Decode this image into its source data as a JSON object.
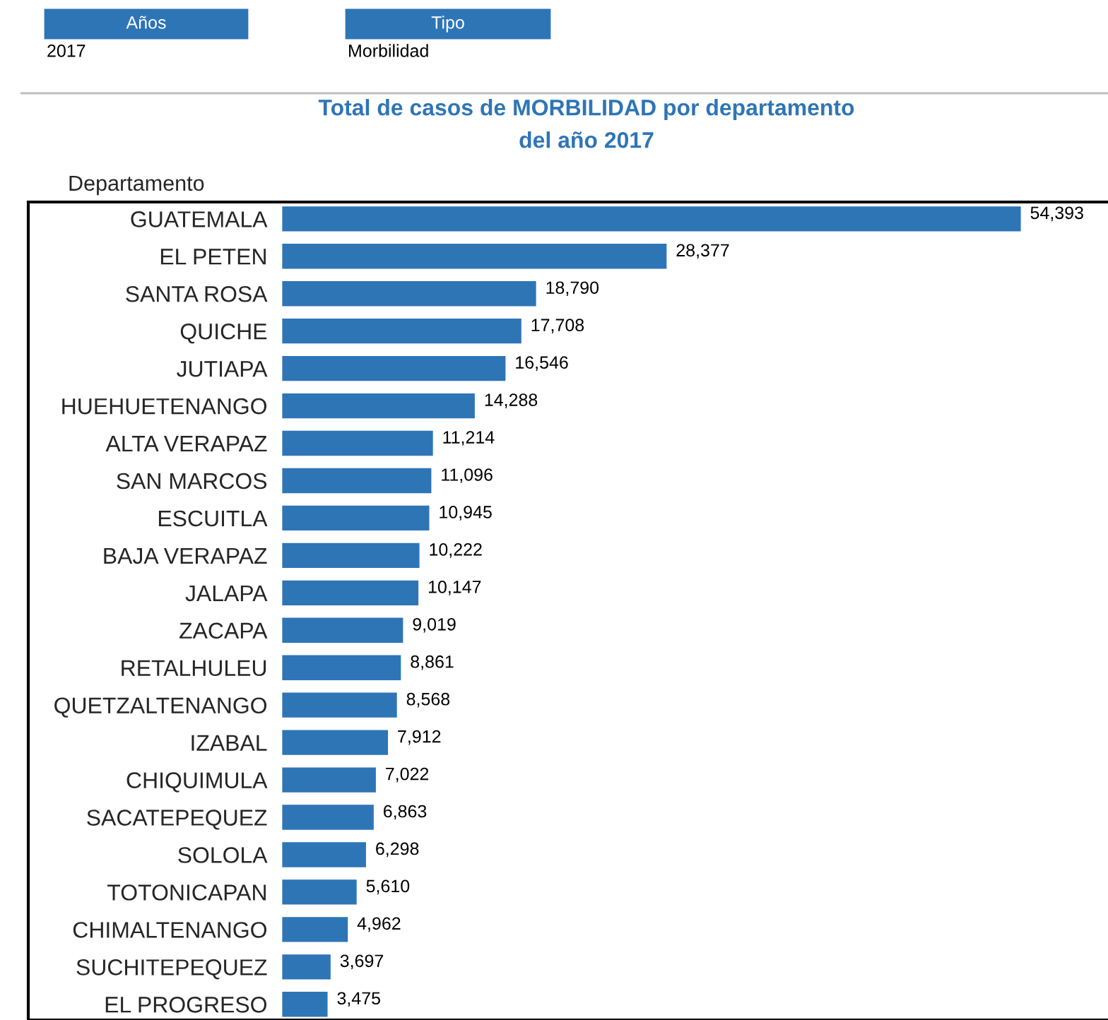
{
  "chart_data": {
    "type": "bar",
    "orientation": "horizontal",
    "title": "Total de casos de MORBILIDAD por departamento\ndel año 2017",
    "ylabel": "Departamento",
    "categories": [
      "GUATEMALA",
      "EL PETEN",
      "SANTA ROSA",
      "QUICHE",
      "JUTIAPA",
      "HUEHUETENANGO",
      "ALTA VERAPAZ",
      "SAN MARCOS",
      "ESCUITLA",
      "BAJA VERAPAZ",
      "JALAPA",
      "ZACAPA",
      "RETALHULEU",
      "QUETZALTENANGO",
      "IZABAL",
      "CHIQUIMULA",
      "SACATEPEQUEZ",
      "SOLOLA",
      "TOTONICAPAN",
      "CHIMALTENANGO",
      "SUCHITEPEQUEZ",
      "EL PROGRESO"
    ],
    "values": [
      54393,
      28377,
      18790,
      17708,
      16546,
      14288,
      11214,
      11096,
      10945,
      10222,
      10147,
      9019,
      8861,
      8568,
      7912,
      7022,
      6863,
      6298,
      5610,
      4962,
      3697,
      3475
    ],
    "value_labels": [
      "54,393",
      "28,377",
      "18,790",
      "17,708",
      "16,546",
      "14,288",
      "11,214",
      "11,096",
      "10,945",
      "10,222",
      "10,147",
      "9,019",
      "8,861",
      "8,568",
      "7,912",
      "7,022",
      "6,863",
      "6,298",
      "5,610",
      "4,962",
      "3,697",
      "3,475"
    ],
    "color": "#2e75b6",
    "annotations": [
      "Años",
      "2017",
      "Tipo",
      "Morbilidad"
    ]
  }
}
